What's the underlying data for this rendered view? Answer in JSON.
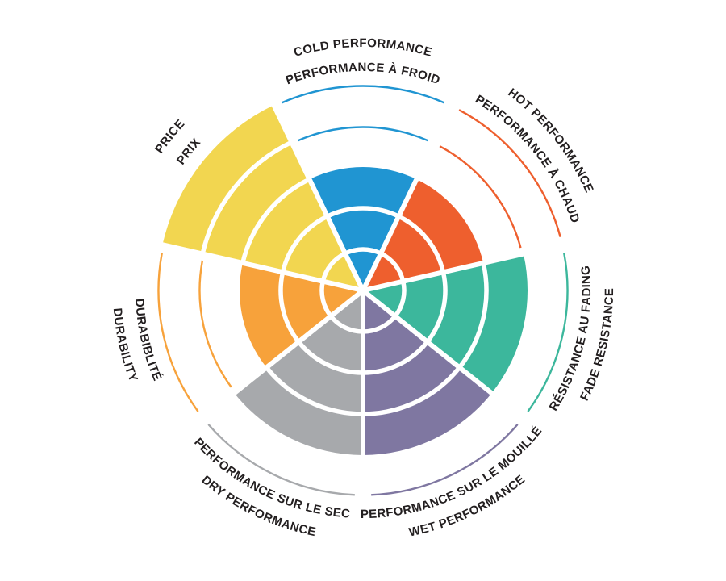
{
  "page": {
    "background": "#ffffff",
    "text_color": "#231F20"
  },
  "chart_data": {
    "type": "radial-sector-rating",
    "description_of_encoding": "7 equal pie sectors, 5 concentric ring levels; filled rings = rating value, remaining levels drawn as thin colored arcs",
    "max_level": 5,
    "order": "clockwise-from-top",
    "grid": "white ring dividers inside filled sectors",
    "legend_position": "labels curved around outside of circle, English and French",
    "categories": [
      {
        "id": "cold-performance",
        "label_en": "COLD PERFORMANCE",
        "label_fr": "PERFORMANCE À FROID",
        "value": 3,
        "color": "#2095D2"
      },
      {
        "id": "hot-performance",
        "label_en": "HOT PERFORMANCE",
        "label_fr": "PERFORMANCE À CHAUD",
        "value": 3,
        "color": "#EE5F2E"
      },
      {
        "id": "fade-resistance",
        "label_en": "FADE RESISTANCE",
        "label_fr": "RÉSISTANCE AU FADING",
        "value": 4,
        "color": "#3CB79C"
      },
      {
        "id": "wet-performance",
        "label_en": "WET PERFORMANCE",
        "label_fr": "PERFORMANCE SUR LE MOUILLÉ",
        "value": 4,
        "color": "#7F77A1"
      },
      {
        "id": "dry-performance",
        "label_en": "DRY PERFORMANCE",
        "label_fr": "PERFORMANCE SUR LE SEC",
        "value": 4,
        "color": "#A7A9AC"
      },
      {
        "id": "durability",
        "label_en": "DURABILITY",
        "label_fr": "DURABIBLITÉ",
        "value": 3,
        "color": "#F7A23B"
      },
      {
        "id": "price",
        "label_en": "PRICE",
        "label_fr": "PRIX",
        "value": 5,
        "color": "#F2D650"
      }
    ]
  }
}
